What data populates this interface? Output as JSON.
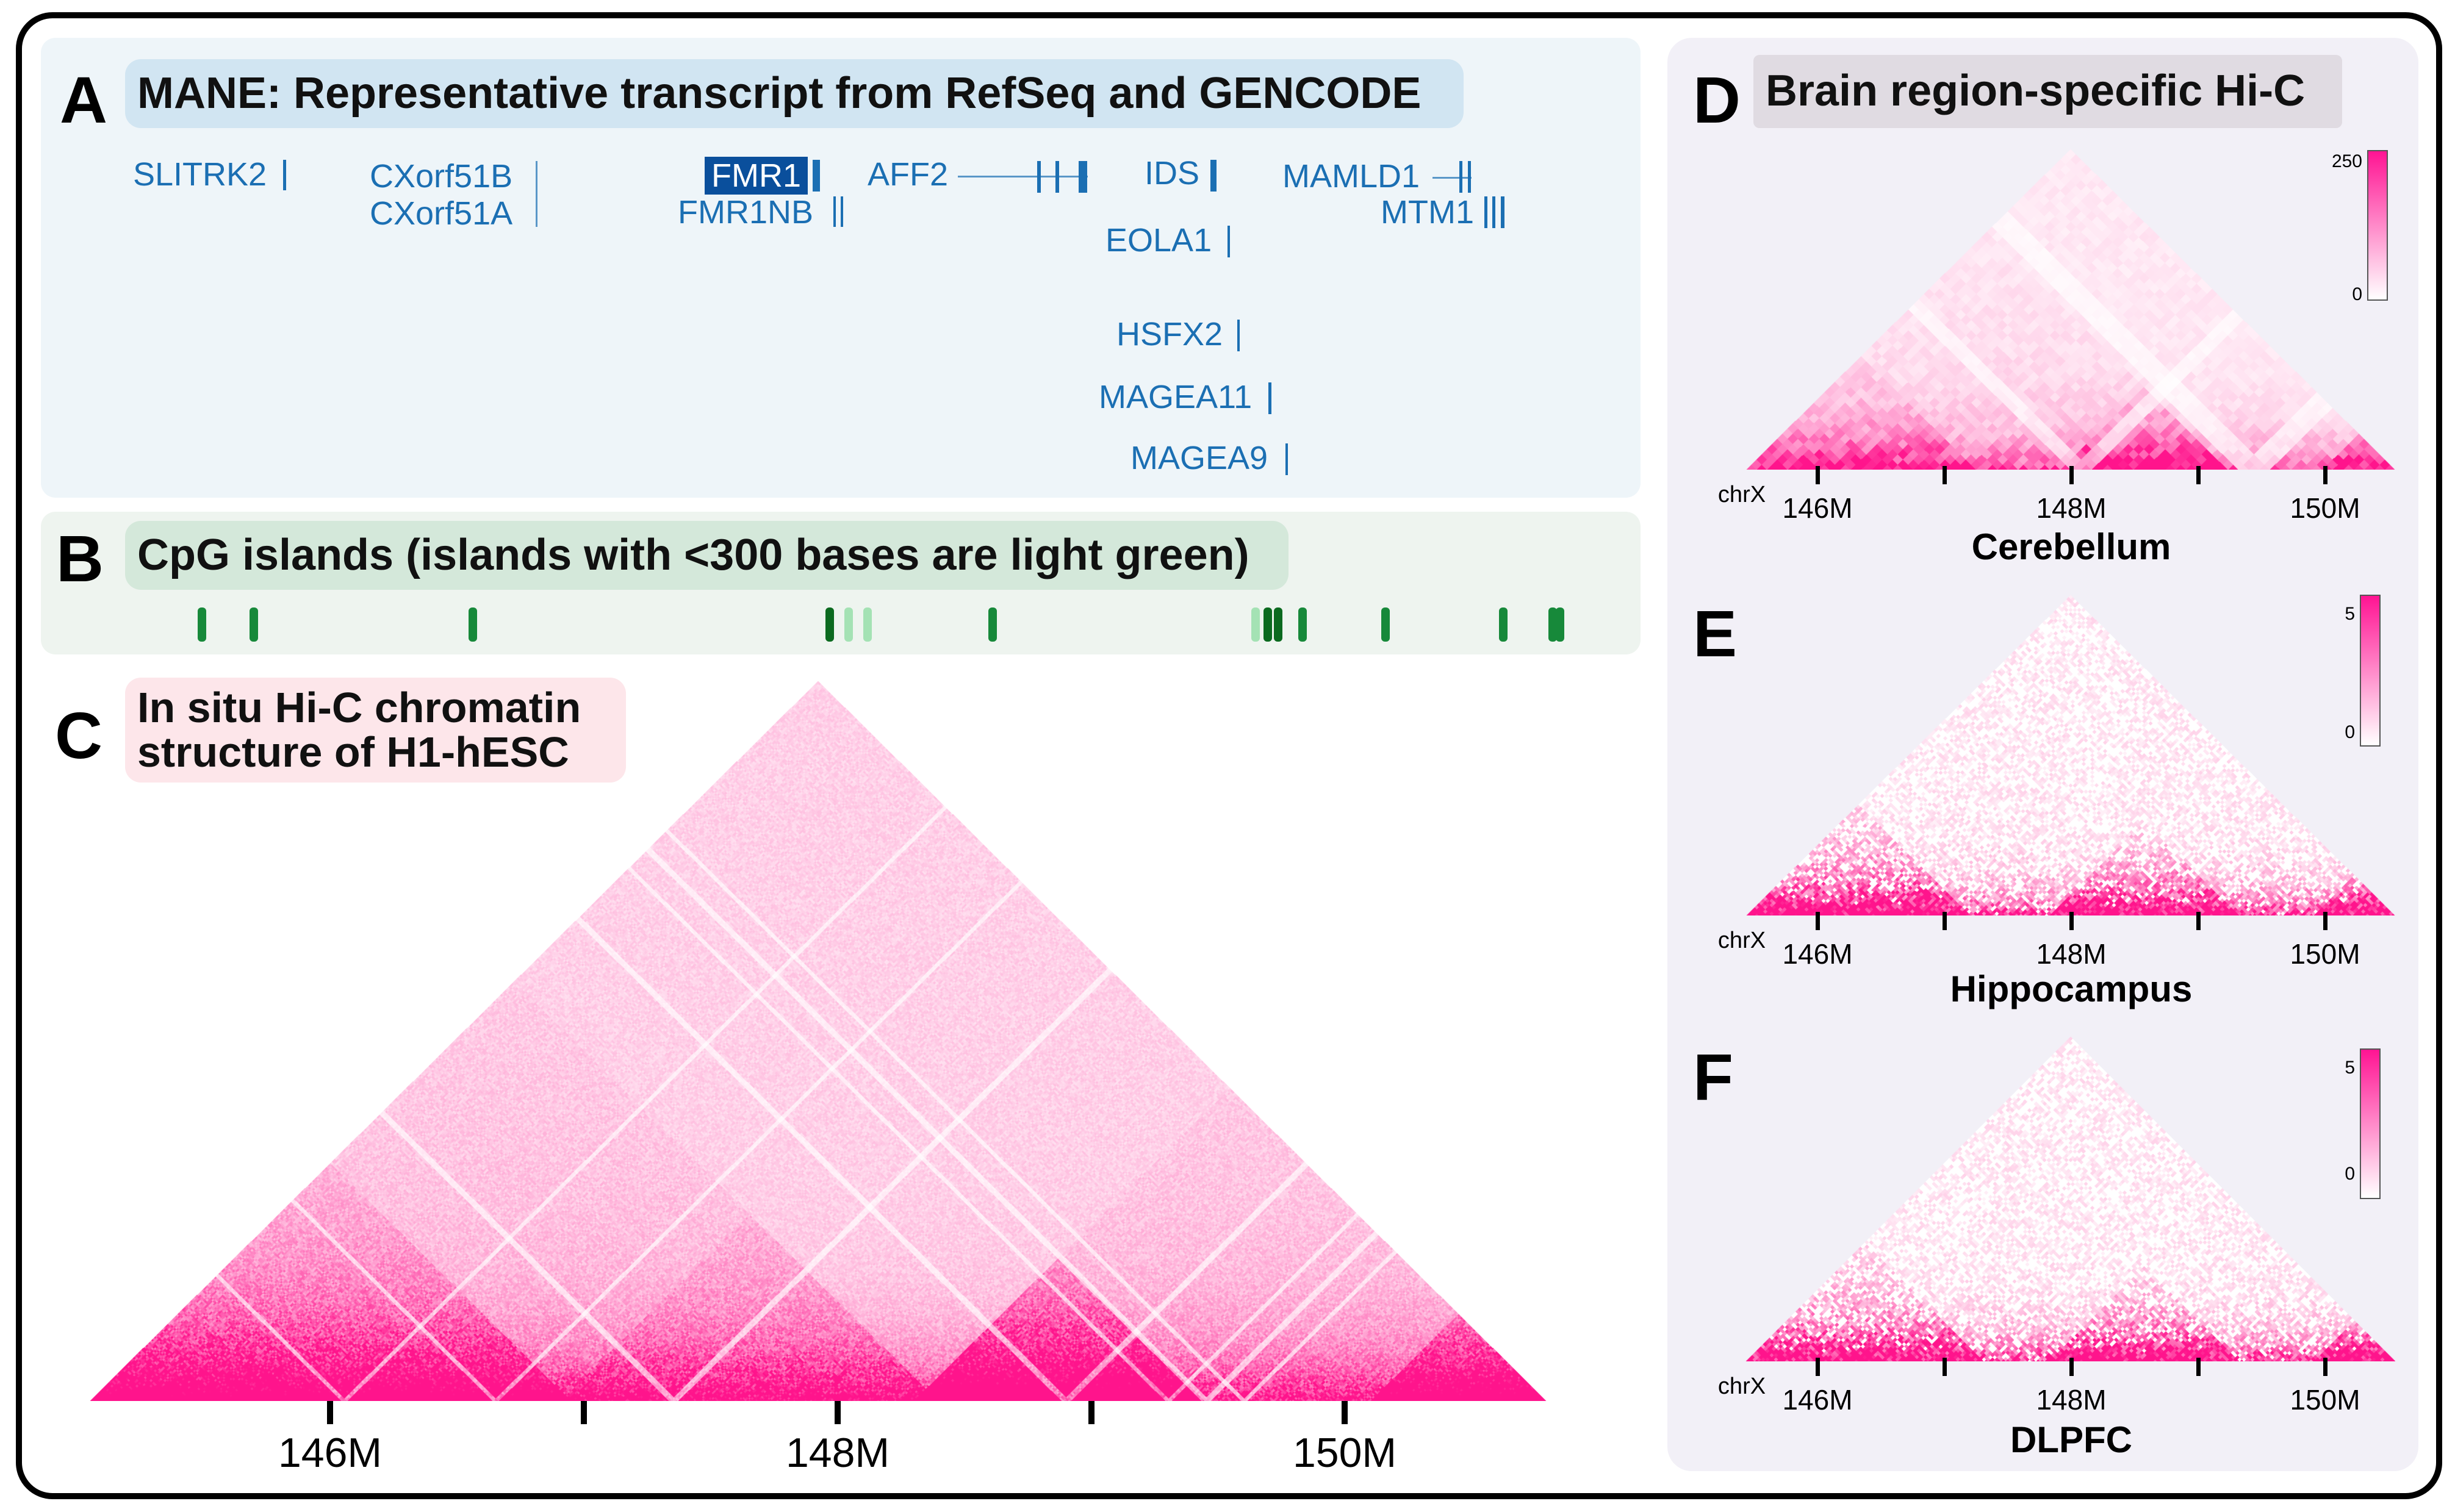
{
  "panels": {
    "A": {
      "letter": "A",
      "title": "MANE: Representative transcript from RefSeq and GENCODE"
    },
    "B": {
      "letter": "B",
      "title": "CpG islands (islands with <300 bases are light green)"
    },
    "C": {
      "letter": "C",
      "title_line1": "In situ Hi-C chromatin",
      "title_line2": "structure of H1-hESC"
    },
    "D": {
      "letter": "D",
      "title": "Brain region-specific Hi-C",
      "subtitle": "Cerebellum",
      "colorbar_max": "250",
      "colorbar_min": "0"
    },
    "E": {
      "letter": "E",
      "subtitle": "Hippocampus",
      "colorbar_max": "5",
      "colorbar_min": "0"
    },
    "F": {
      "letter": "F",
      "subtitle": "DLPFC",
      "colorbar_max": "5",
      "colorbar_min": "0"
    }
  },
  "genes": [
    "SLITRK2",
    "CXorf51B",
    "CXorf51A",
    "FMR1",
    "FMR1NB",
    "AFF2",
    "IDS",
    "EOLA1",
    "HSFX2",
    "MAGEA11",
    "MAGEA9",
    "MAMLD1",
    "MTM1"
  ],
  "highlighted_gene": "FMR1",
  "axis": {
    "chrom": "chrX",
    "ticks": [
      "146M",
      "148M",
      "150M"
    ]
  },
  "colors": {
    "hic": "#ff1493",
    "cpg_long": "#17893a",
    "cpg_short": "#a4e2b4",
    "gene": "#1b6fb3",
    "highlight": "#0a4f9c"
  },
  "chart_data": {
    "type": "heatmap",
    "region_mb": [
      145.05,
      150.8
    ],
    "major_ticks_mb": [
      146,
      148,
      150
    ],
    "minor_ticks_mb": [
      147,
      149
    ]
  }
}
